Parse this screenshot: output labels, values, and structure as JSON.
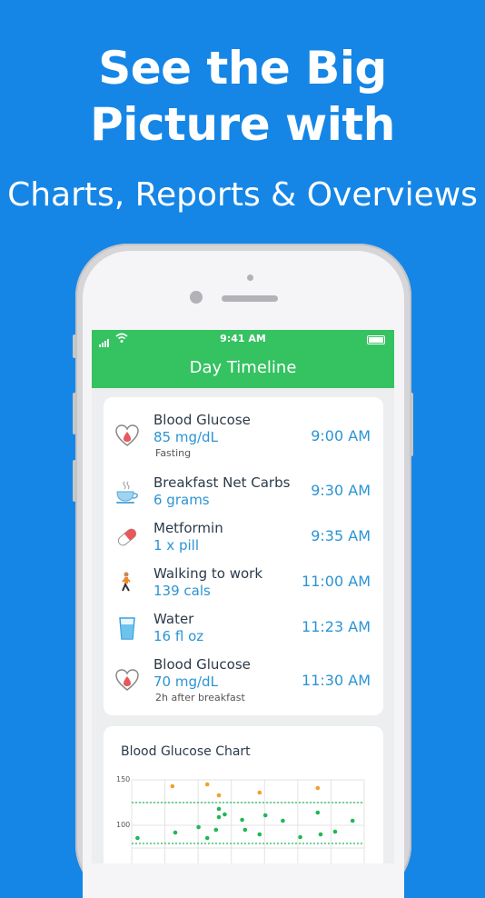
{
  "headline": {
    "line1": "See the Big",
    "line2": "Picture with",
    "line3": "Charts, Reports & Overviews"
  },
  "status": {
    "time": "9:41 AM"
  },
  "nav": {
    "title": "Day Timeline"
  },
  "timeline": [
    {
      "title": "Blood Glucose",
      "value": "85 mg/dL",
      "note": "Fasting",
      "time": "9:00 AM",
      "icon": "blood-drop-heart-icon"
    },
    {
      "title": "Breakfast Net Carbs",
      "value": "6 grams",
      "note": "",
      "time": "9:30 AM",
      "icon": "coffee-cup-icon"
    },
    {
      "title": "Metformin",
      "value": "1 x pill",
      "note": "",
      "time": "9:35 AM",
      "icon": "pill-icon"
    },
    {
      "title": "Walking to work",
      "value": "139 cals",
      "note": "",
      "time": "11:00 AM",
      "icon": "walking-person-icon"
    },
    {
      "title": "Water",
      "value": "16 fl oz",
      "note": "",
      "time": "11:23 AM",
      "icon": "water-glass-icon"
    },
    {
      "title": "Blood Glucose",
      "value": "70 mg/dL",
      "note": "2h after breakfast",
      "time": "11:30 AM",
      "icon": "blood-drop-heart-icon"
    }
  ],
  "chart_data": {
    "type": "scatter",
    "title": "Blood Glucose Chart",
    "yticks": [
      "150",
      "100"
    ],
    "ylim": [
      50,
      150
    ],
    "range_lines": [
      125,
      80
    ],
    "colors": {
      "in_range": "#1fb954",
      "high": "#f0a030",
      "range_line": "#1fb954",
      "grid": "#e3e3e3"
    },
    "series": [
      {
        "color": "high",
        "points": [
          [
            1.4,
            143
          ],
          [
            2.6,
            145
          ],
          [
            3.0,
            133
          ],
          [
            4.4,
            136
          ],
          [
            6.4,
            141
          ]
        ]
      },
      {
        "color": "in_range",
        "points": [
          [
            0.2,
            86
          ],
          [
            1.5,
            92
          ],
          [
            2.3,
            98
          ],
          [
            2.6,
            86
          ],
          [
            2.9,
            95
          ],
          [
            3.0,
            109
          ],
          [
            3.0,
            118
          ],
          [
            3.2,
            112
          ],
          [
            3.8,
            106
          ],
          [
            3.9,
            95
          ],
          [
            4.4,
            90
          ],
          [
            4.6,
            111
          ],
          [
            5.2,
            105
          ],
          [
            5.8,
            87
          ],
          [
            6.4,
            114
          ],
          [
            6.5,
            90
          ],
          [
            7.0,
            93
          ],
          [
            7.6,
            105
          ]
        ]
      }
    ]
  }
}
